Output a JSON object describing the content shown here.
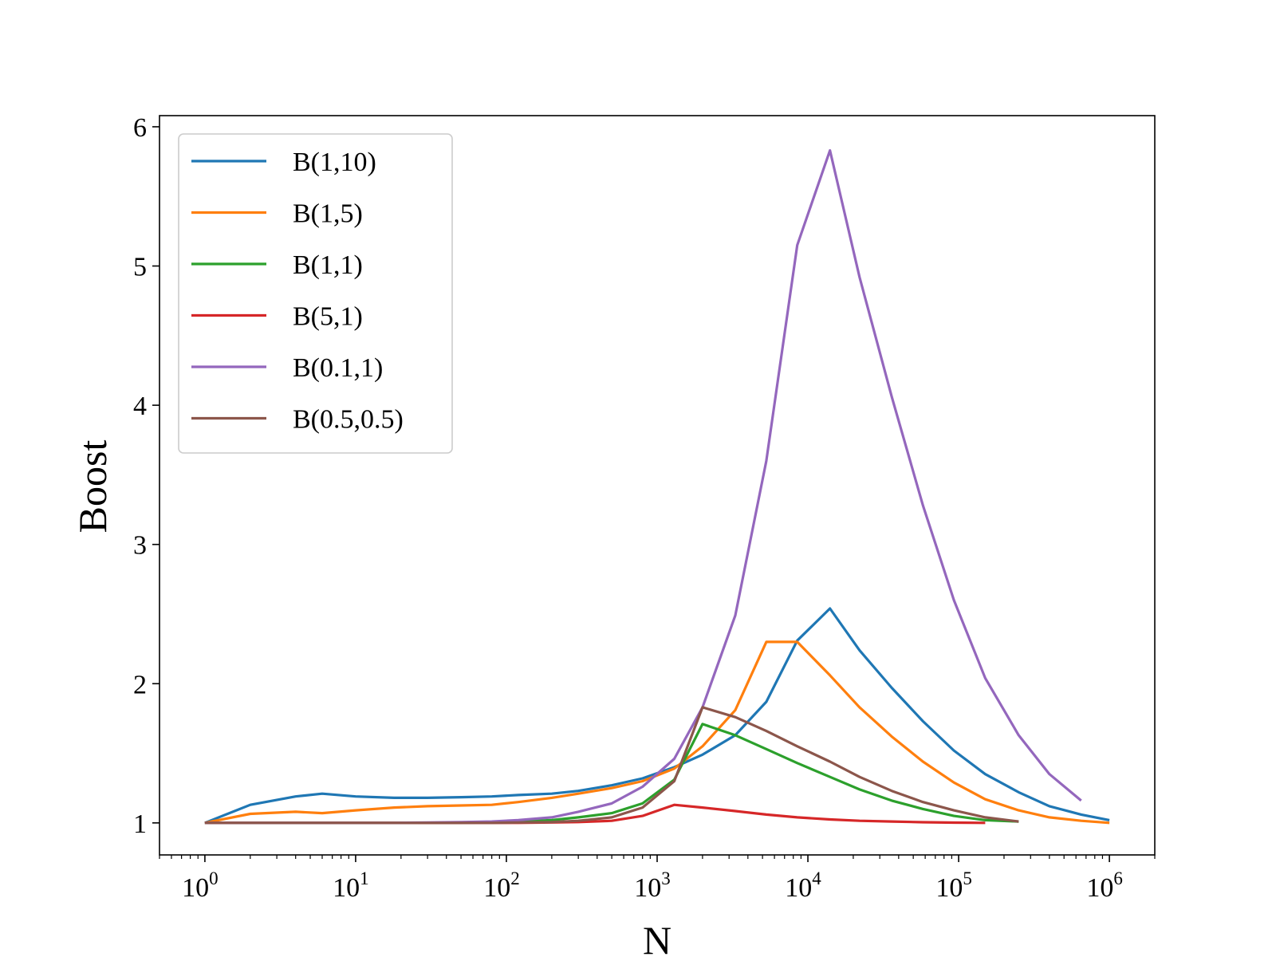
{
  "chart_data": {
    "type": "line",
    "title": "",
    "xlabel": "N",
    "ylabel": "Boost",
    "xscale": "log",
    "xlim": [
      0.5,
      2000000
    ],
    "ylim": [
      0.77,
      6.08
    ],
    "x_ticks": [
      {
        "base": "10",
        "exp": "0",
        "value": 1
      },
      {
        "base": "10",
        "exp": "1",
        "value": 10
      },
      {
        "base": "10",
        "exp": "2",
        "value": 100
      },
      {
        "base": "10",
        "exp": "3",
        "value": 1000
      },
      {
        "base": "10",
        "exp": "4",
        "value": 10000
      },
      {
        "base": "10",
        "exp": "5",
        "value": 100000
      },
      {
        "base": "10",
        "exp": "6",
        "value": 1000000
      }
    ],
    "y_ticks": [
      {
        "label": "1",
        "value": 1
      },
      {
        "label": "2",
        "value": 2
      },
      {
        "label": "3",
        "value": 3
      },
      {
        "label": "4",
        "value": 4
      },
      {
        "label": "5",
        "value": 5
      },
      {
        "label": "6",
        "value": 6
      }
    ],
    "grid": false,
    "legend_position": "top-left",
    "series": [
      {
        "name": "B(1,10)",
        "color": "#1f77b4",
        "x": [
          1,
          2,
          4,
          6,
          10,
          18,
          30,
          50,
          80,
          120,
          200,
          300,
          500,
          800,
          1300,
          2000,
          3300,
          5300,
          8500,
          14000,
          22000,
          36000,
          58000,
          93000,
          150000,
          250000,
          400000,
          650000,
          1000000
        ],
        "y": [
          1.0,
          1.13,
          1.19,
          1.21,
          1.19,
          1.18,
          1.18,
          1.185,
          1.19,
          1.2,
          1.21,
          1.23,
          1.27,
          1.32,
          1.4,
          1.49,
          1.63,
          1.87,
          2.31,
          2.54,
          2.24,
          1.97,
          1.73,
          1.52,
          1.35,
          1.22,
          1.12,
          1.06,
          1.02
        ]
      },
      {
        "name": "B(1,5)",
        "color": "#ff7f0e",
        "x": [
          1,
          2,
          4,
          6,
          10,
          18,
          30,
          50,
          80,
          120,
          200,
          300,
          500,
          800,
          1300,
          2000,
          3300,
          5300,
          8500,
          14000,
          22000,
          36000,
          58000,
          93000,
          150000,
          250000,
          400000,
          650000,
          1000000
        ],
        "y": [
          1.0,
          1.065,
          1.08,
          1.07,
          1.09,
          1.11,
          1.12,
          1.125,
          1.13,
          1.15,
          1.18,
          1.21,
          1.25,
          1.3,
          1.39,
          1.55,
          1.81,
          2.3,
          2.3,
          2.06,
          1.83,
          1.62,
          1.44,
          1.29,
          1.17,
          1.09,
          1.04,
          1.015,
          1.0
        ]
      },
      {
        "name": "B(1,1)",
        "color": "#2ca02c",
        "x": [
          1,
          2,
          4,
          6,
          10,
          18,
          30,
          50,
          80,
          120,
          200,
          300,
          500,
          800,
          1300,
          2000,
          3300,
          5300,
          8500,
          14000,
          22000,
          36000,
          58000,
          93000,
          150000,
          250000
        ],
        "y": [
          1.0,
          1.0,
          1.0,
          1.0,
          1.0,
          1.0,
          1.0,
          1.0,
          1.005,
          1.01,
          1.02,
          1.04,
          1.07,
          1.14,
          1.31,
          1.71,
          1.63,
          1.53,
          1.43,
          1.33,
          1.24,
          1.16,
          1.1,
          1.05,
          1.02,
          1.01
        ]
      },
      {
        "name": "B(5,1)",
        "color": "#d62728",
        "x": [
          1,
          2,
          4,
          6,
          10,
          18,
          30,
          50,
          80,
          120,
          200,
          300,
          500,
          800,
          1300,
          2000,
          3300,
          5300,
          8500,
          14000,
          22000,
          36000,
          58000,
          93000,
          150000
        ],
        "y": [
          1.0,
          1.0,
          1.0,
          1.0,
          1.0,
          1.0,
          1.0,
          1.0,
          1.0,
          1.0,
          1.003,
          1.006,
          1.015,
          1.05,
          1.13,
          1.11,
          1.085,
          1.06,
          1.04,
          1.025,
          1.015,
          1.01,
          1.005,
          1.002,
          1.0
        ]
      },
      {
        "name": "B(0.1,1)",
        "color": "#9467bd",
        "x": [
          1,
          2,
          4,
          6,
          10,
          18,
          30,
          50,
          80,
          120,
          200,
          300,
          500,
          800,
          1300,
          2000,
          3300,
          5300,
          8500,
          14000,
          22000,
          36000,
          58000,
          93000,
          150000,
          250000,
          400000,
          650000
        ],
        "y": [
          1.0,
          1.0,
          1.0,
          1.0,
          1.0,
          1.0,
          1.003,
          1.006,
          1.01,
          1.02,
          1.04,
          1.08,
          1.14,
          1.26,
          1.46,
          1.83,
          2.49,
          3.6,
          5.15,
          5.83,
          4.92,
          4.06,
          3.28,
          2.6,
          2.04,
          1.63,
          1.35,
          1.16
        ]
      },
      {
        "name": "B(0.5,0.5)",
        "color": "#8c564b",
        "x": [
          1,
          2,
          4,
          6,
          10,
          18,
          30,
          50,
          80,
          120,
          200,
          300,
          500,
          800,
          1300,
          2000,
          3300,
          5300,
          8500,
          14000,
          22000,
          36000,
          58000,
          93000,
          150000,
          250000
        ],
        "y": [
          1.0,
          1.0,
          1.0,
          1.0,
          1.0,
          1.0,
          1.0,
          1.0,
          1.0,
          1.003,
          1.006,
          1.015,
          1.04,
          1.11,
          1.3,
          1.83,
          1.76,
          1.66,
          1.55,
          1.44,
          1.33,
          1.23,
          1.15,
          1.09,
          1.04,
          1.01
        ]
      }
    ]
  }
}
